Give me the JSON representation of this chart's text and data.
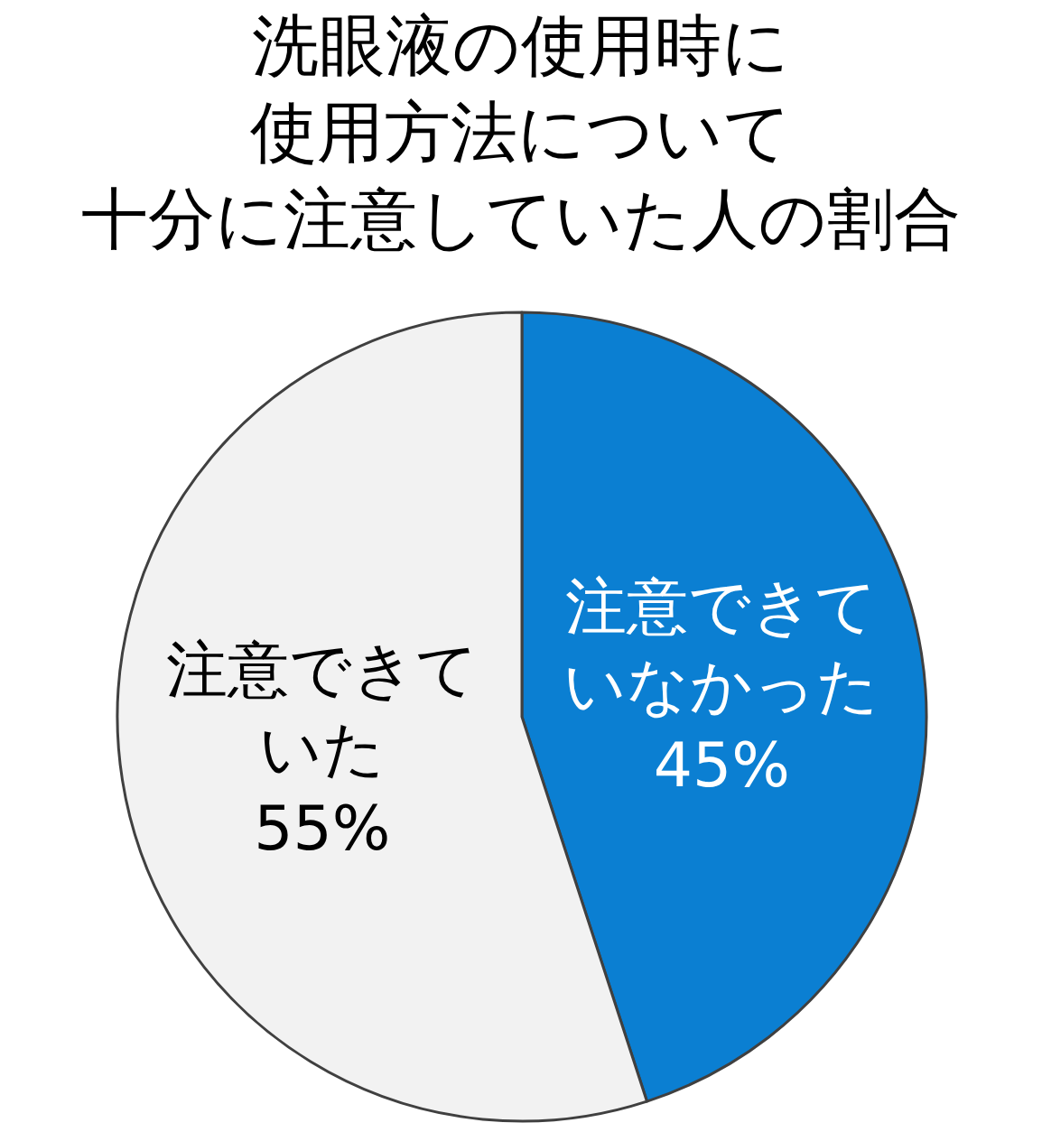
{
  "chart_data": {
    "type": "pie",
    "title": "洗眼液の使用時に使用方法について十分に注意していた人の割合",
    "categories": [
      "注意できていなかった",
      "注意できていた"
    ],
    "values": [
      45,
      55
    ],
    "colors": [
      "#0b7fd2",
      "#f2f2f2"
    ],
    "value_labels": [
      "45%",
      "55%"
    ]
  }
}
